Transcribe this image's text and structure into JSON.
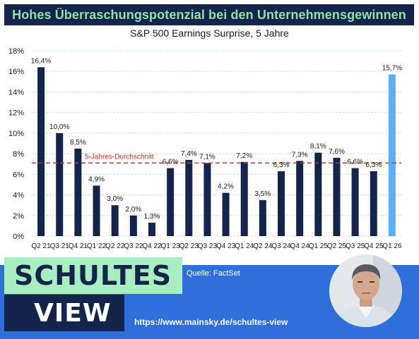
{
  "header": {
    "title": "Hohes Überraschungspotenzial bei den Unternehmensgewinnen",
    "subtitle": "S&P 500 Earnings Surprise, 5 Jahre"
  },
  "chart_data": {
    "type": "bar",
    "title": "S&P 500 Earnings Surprise, 5 Jahre",
    "categories": [
      "Q2 21",
      "Q3 21",
      "Q4 21",
      "Q1 22",
      "Q2 22",
      "Q3 22",
      "Q4 22",
      "Q1 23",
      "Q2 23",
      "Q3 23",
      "Q4 23",
      "Q1 24",
      "Q2 24",
      "Q3 24",
      "Q4 24",
      "Q1 25",
      "Q2 25",
      "Q3 25",
      "Q4 25",
      "Q1 26"
    ],
    "values": [
      16.4,
      10.0,
      8.5,
      4.9,
      3.0,
      2.0,
      1.3,
      6.6,
      7.4,
      7.1,
      4.2,
      7.2,
      3.5,
      6.3,
      7.3,
      8.1,
      7.6,
      6.6,
      6.3,
      15.7
    ],
    "value_labels": [
      "16,4%",
      "10,0%",
      "8,5%",
      "4,9%",
      "3,0%",
      "2,0%",
      "1,3%",
      "6,6%",
      "7,4%",
      "7,1%",
      "4,2%",
      "7,2%",
      "3,5%",
      "6,3%",
      "7,3%",
      "8,1%",
      "7,6%",
      "6,6%",
      "6,3%",
      "15,7%"
    ],
    "highlight_last": true,
    "ylim": [
      0,
      18
    ],
    "yticks": [
      0,
      2,
      4,
      6,
      8,
      10,
      12,
      14,
      16,
      18
    ],
    "ytick_labels": [
      "0%",
      "2%",
      "4%",
      "6%",
      "8%",
      "10%",
      "12%",
      "14%",
      "16%",
      "18%"
    ],
    "grid": true,
    "reference_line": {
      "label": "5-Jahres-Durchschnitt",
      "value": 7.1
    },
    "colors": {
      "bar": "#14244a",
      "highlight": "#5ab0f0",
      "reference": "#c0392b",
      "grid": "#c8ebc8"
    }
  },
  "footer": {
    "logo_line1": "SCHULTES",
    "logo_line2": "VIEW",
    "source": "Quelle: FactSet",
    "url": "https://www.mainsky.de/schultes-view",
    "colors": {
      "band": "#2f6fd9",
      "logo_top": "#a9eec0",
      "logo_bottom": "#14244a"
    }
  }
}
